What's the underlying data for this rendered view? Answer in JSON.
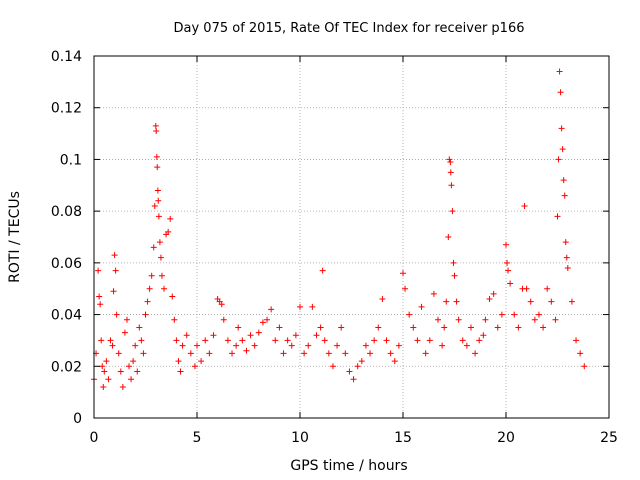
{
  "chart_data": {
    "type": "scatter",
    "title": "Day 075 of 2015, Rate Of TEC Index for receiver p166",
    "xlabel": "GPS time / hours",
    "ylabel": "ROTI / TECUs",
    "xlim": [
      0,
      25
    ],
    "ylim": [
      0,
      0.14
    ],
    "x_ticks": [
      0,
      5,
      10,
      15,
      20,
      25
    ],
    "x_tick_labels": [
      "0",
      "5",
      "10",
      "15",
      "20",
      "25"
    ],
    "y_ticks": [
      0,
      0.02,
      0.04,
      0.06,
      0.08,
      0.1,
      0.12,
      0.14
    ],
    "y_tick_labels": [
      "0",
      "0.02",
      "0.04",
      "0.06",
      "0.08",
      "0.1",
      "0.12",
      "0.14"
    ],
    "grid": true,
    "marker": "+",
    "color": "#ff0000",
    "series": [
      {
        "name": "ROTI",
        "points": [
          [
            0.0,
            0.015
          ],
          [
            0.1,
            0.025
          ],
          [
            0.2,
            0.057
          ],
          [
            0.25,
            0.047
          ],
          [
            0.3,
            0.044
          ],
          [
            0.35,
            0.03
          ],
          [
            0.4,
            0.02
          ],
          [
            0.45,
            0.012
          ],
          [
            0.5,
            0.018
          ],
          [
            0.6,
            0.022
          ],
          [
            0.7,
            0.015
          ],
          [
            0.8,
            0.03
          ],
          [
            0.9,
            0.028
          ],
          [
            0.95,
            0.049
          ],
          [
            1.0,
            0.063
          ],
          [
            1.05,
            0.057
          ],
          [
            1.1,
            0.04
          ],
          [
            1.2,
            0.025
          ],
          [
            1.3,
            0.018
          ],
          [
            1.4,
            0.012
          ],
          [
            1.5,
            0.033
          ],
          [
            1.6,
            0.038
          ],
          [
            1.7,
            0.02
          ],
          [
            1.8,
            0.015
          ],
          [
            1.9,
            0.022
          ],
          [
            2.0,
            0.028
          ],
          [
            2.1,
            0.018
          ],
          [
            2.2,
            0.035
          ],
          [
            2.3,
            0.03
          ],
          [
            2.4,
            0.025
          ],
          [
            2.5,
            0.04
          ],
          [
            2.6,
            0.045
          ],
          [
            2.7,
            0.05
          ],
          [
            2.8,
            0.055
          ],
          [
            2.9,
            0.066
          ],
          [
            2.95,
            0.082
          ],
          [
            3.0,
            0.113
          ],
          [
            3.02,
            0.111
          ],
          [
            3.05,
            0.101
          ],
          [
            3.07,
            0.097
          ],
          [
            3.1,
            0.088
          ],
          [
            3.12,
            0.084
          ],
          [
            3.15,
            0.078
          ],
          [
            3.2,
            0.068
          ],
          [
            3.25,
            0.062
          ],
          [
            3.3,
            0.055
          ],
          [
            3.4,
            0.05
          ],
          [
            3.5,
            0.071
          ],
          [
            3.6,
            0.072
          ],
          [
            3.7,
            0.077
          ],
          [
            3.8,
            0.047
          ],
          [
            3.9,
            0.038
          ],
          [
            4.0,
            0.03
          ],
          [
            4.1,
            0.022
          ],
          [
            4.2,
            0.018
          ],
          [
            4.3,
            0.028
          ],
          [
            4.5,
            0.032
          ],
          [
            4.7,
            0.025
          ],
          [
            4.9,
            0.02
          ],
          [
            5.0,
            0.028
          ],
          [
            5.2,
            0.022
          ],
          [
            5.4,
            0.03
          ],
          [
            5.6,
            0.025
          ],
          [
            5.8,
            0.032
          ],
          [
            6.0,
            0.046
          ],
          [
            6.1,
            0.045
          ],
          [
            6.2,
            0.044
          ],
          [
            6.3,
            0.038
          ],
          [
            6.5,
            0.03
          ],
          [
            6.7,
            0.025
          ],
          [
            6.9,
            0.028
          ],
          [
            7.0,
            0.035
          ],
          [
            7.2,
            0.03
          ],
          [
            7.4,
            0.026
          ],
          [
            7.6,
            0.032
          ],
          [
            7.8,
            0.028
          ],
          [
            8.0,
            0.033
          ],
          [
            8.2,
            0.037
          ],
          [
            8.4,
            0.038
          ],
          [
            8.6,
            0.042
          ],
          [
            8.8,
            0.03
          ],
          [
            9.0,
            0.035
          ],
          [
            9.2,
            0.025
          ],
          [
            9.4,
            0.03
          ],
          [
            9.6,
            0.028
          ],
          [
            9.8,
            0.032
          ],
          [
            10.0,
            0.043
          ],
          [
            10.2,
            0.025
          ],
          [
            10.4,
            0.028
          ],
          [
            10.6,
            0.043
          ],
          [
            10.8,
            0.032
          ],
          [
            11.0,
            0.035
          ],
          [
            11.1,
            0.057
          ],
          [
            11.2,
            0.03
          ],
          [
            11.4,
            0.025
          ],
          [
            11.6,
            0.02
          ],
          [
            11.8,
            0.028
          ],
          [
            12.0,
            0.035
          ],
          [
            12.2,
            0.025
          ],
          [
            12.4,
            0.018
          ],
          [
            12.6,
            0.015
          ],
          [
            12.8,
            0.02
          ],
          [
            13.0,
            0.022
          ],
          [
            13.2,
            0.028
          ],
          [
            13.4,
            0.025
          ],
          [
            13.6,
            0.03
          ],
          [
            13.8,
            0.035
          ],
          [
            14.0,
            0.046
          ],
          [
            14.2,
            0.03
          ],
          [
            14.4,
            0.025
          ],
          [
            14.6,
            0.022
          ],
          [
            14.8,
            0.028
          ],
          [
            15.0,
            0.056
          ],
          [
            15.1,
            0.05
          ],
          [
            15.3,
            0.04
          ],
          [
            15.5,
            0.035
          ],
          [
            15.7,
            0.03
          ],
          [
            15.9,
            0.043
          ],
          [
            16.1,
            0.025
          ],
          [
            16.3,
            0.03
          ],
          [
            16.5,
            0.048
          ],
          [
            16.7,
            0.038
          ],
          [
            16.9,
            0.028
          ],
          [
            17.0,
            0.035
          ],
          [
            17.1,
            0.045
          ],
          [
            17.2,
            0.07
          ],
          [
            17.25,
            0.1
          ],
          [
            17.3,
            0.099
          ],
          [
            17.32,
            0.095
          ],
          [
            17.35,
            0.09
          ],
          [
            17.4,
            0.08
          ],
          [
            17.45,
            0.06
          ],
          [
            17.5,
            0.055
          ],
          [
            17.6,
            0.045
          ],
          [
            17.7,
            0.038
          ],
          [
            17.9,
            0.03
          ],
          [
            18.1,
            0.028
          ],
          [
            18.3,
            0.035
          ],
          [
            18.5,
            0.025
          ],
          [
            18.7,
            0.03
          ],
          [
            18.9,
            0.032
          ],
          [
            19.0,
            0.038
          ],
          [
            19.2,
            0.046
          ],
          [
            19.4,
            0.048
          ],
          [
            19.6,
            0.035
          ],
          [
            19.8,
            0.04
          ],
          [
            20.0,
            0.067
          ],
          [
            20.05,
            0.06
          ],
          [
            20.1,
            0.057
          ],
          [
            20.2,
            0.052
          ],
          [
            20.4,
            0.04
          ],
          [
            20.6,
            0.035
          ],
          [
            20.8,
            0.05
          ],
          [
            20.9,
            0.082
          ],
          [
            21.0,
            0.05
          ],
          [
            21.2,
            0.045
          ],
          [
            21.4,
            0.038
          ],
          [
            21.6,
            0.04
          ],
          [
            21.8,
            0.035
          ],
          [
            22.0,
            0.05
          ],
          [
            22.2,
            0.045
          ],
          [
            22.4,
            0.038
          ],
          [
            22.5,
            0.078
          ],
          [
            22.55,
            0.1
          ],
          [
            22.6,
            0.134
          ],
          [
            22.65,
            0.126
          ],
          [
            22.7,
            0.112
          ],
          [
            22.75,
            0.104
          ],
          [
            22.8,
            0.092
          ],
          [
            22.85,
            0.086
          ],
          [
            22.9,
            0.068
          ],
          [
            22.95,
            0.062
          ],
          [
            23.0,
            0.058
          ],
          [
            23.2,
            0.045
          ],
          [
            23.4,
            0.03
          ],
          [
            23.6,
            0.025
          ],
          [
            23.8,
            0.02
          ]
        ]
      }
    ]
  }
}
